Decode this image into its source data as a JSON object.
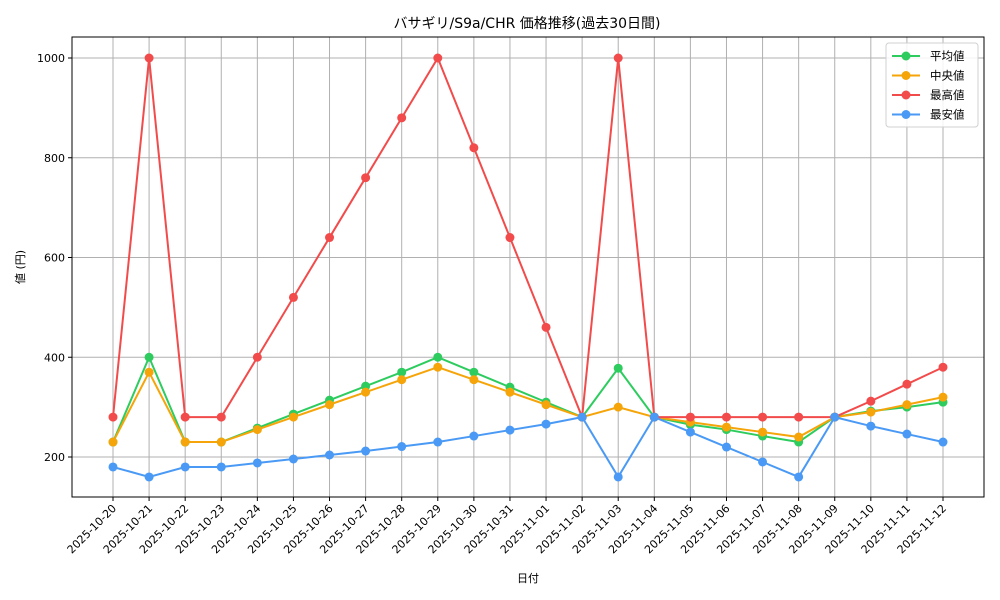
{
  "chart_data": {
    "type": "line",
    "title": "バサギリ/S9a/CHR 価格推移(過去30日間)",
    "xlabel": "日付",
    "ylabel": "値 (円)",
    "ylim": [
      120,
      1042
    ],
    "yticks": [
      200,
      400,
      600,
      800,
      1000
    ],
    "grid": true,
    "legend_position": "upper right",
    "x": [
      "2025-10-20",
      "2025-10-21",
      "2025-10-22",
      "2025-10-23",
      "2025-10-24",
      "2025-10-25",
      "2025-10-26",
      "2025-10-27",
      "2025-10-28",
      "2025-10-29",
      "2025-10-30",
      "2025-10-31",
      "2025-11-01",
      "2025-11-02",
      "2025-11-03",
      "2025-11-04",
      "2025-11-05",
      "2025-11-06",
      "2025-11-07",
      "2025-11-08",
      "2025-11-09",
      "2025-11-10",
      "2025-11-11",
      "2025-11-12"
    ],
    "series": [
      {
        "name": "平均値",
        "color": "#2ecc5f",
        "values": [
          230,
          400,
          230,
          230,
          258,
          286,
          314,
          342,
          370,
          400,
          370,
          340,
          310,
          280,
          378,
          280,
          265,
          255,
          242,
          230,
          280,
          292,
          300,
          310
        ]
      },
      {
        "name": "中央値",
        "color": "#f5a50a",
        "values": [
          230,
          370,
          230,
          230,
          255,
          280,
          305,
          330,
          355,
          380,
          355,
          330,
          305,
          280,
          300,
          280,
          270,
          260,
          250,
          240,
          280,
          290,
          305,
          320
        ]
      },
      {
        "name": "最高値",
        "color": "#f24b4b",
        "values": [
          280,
          1000,
          280,
          280,
          400,
          520,
          640,
          760,
          880,
          1000,
          820,
          640,
          460,
          280,
          1000,
          280,
          280,
          280,
          280,
          280,
          280,
          312,
          346,
          380
        ]
      },
      {
        "name": "最安値",
        "color": "#4a9af5",
        "values": [
          180,
          160,
          180,
          180,
          188,
          196,
          204,
          212,
          221,
          230,
          242,
          254,
          266,
          280,
          160,
          280,
          250,
          220,
          190,
          160,
          280,
          262,
          246,
          230
        ]
      }
    ]
  }
}
